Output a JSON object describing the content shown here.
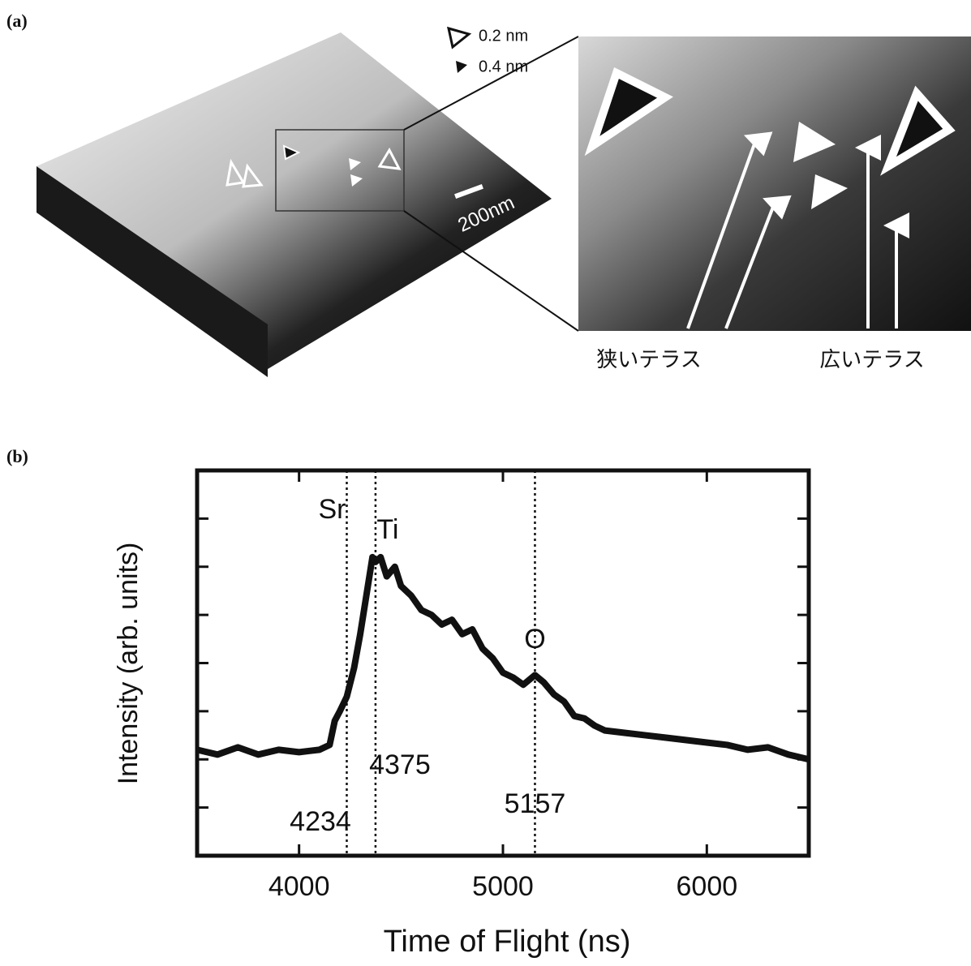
{
  "panel_a": {
    "label": "(a)",
    "legend": [
      "0.2 nm",
      "0.4 nm"
    ],
    "scale_bar": "200nm",
    "annotations": [
      "狭いテラス",
      "広いテラス"
    ]
  },
  "chart_data": {
    "type": "line",
    "panel_label": "(b)",
    "x_label": "Time of Flight (ns)",
    "y_label": "Intensity (arb. units)",
    "xlim": [
      3500,
      6500
    ],
    "ylim": [
      0,
      8
    ],
    "xticks": [
      4000,
      5000,
      6000
    ],
    "yticks": [
      1,
      2,
      3,
      4,
      5,
      6,
      7
    ],
    "peaks": [
      {
        "element": "Sr",
        "x": 4234
      },
      {
        "element": "Ti",
        "x": 4375
      },
      {
        "element": "O",
        "x": 5157
      }
    ],
    "series": [
      {
        "color": "#111111",
        "x": [
          3500,
          3600,
          3700,
          3800,
          3900,
          4000,
          4100,
          4150,
          4175,
          4200,
          4234,
          4270,
          4300,
          4330,
          4360,
          4375,
          4400,
          4430,
          4470,
          4500,
          4550,
          4600,
          4650,
          4700,
          4750,
          4800,
          4850,
          4900,
          4950,
          5000,
          5050,
          5100,
          5157,
          5200,
          5250,
          5300,
          5350,
          5400,
          5450,
          5500,
          5600,
          5700,
          5800,
          5900,
          6000,
          6100,
          6200,
          6300,
          6400,
          6500
        ],
        "values": [
          2.2,
          2.1,
          2.25,
          2.1,
          2.2,
          2.15,
          2.2,
          2.3,
          2.8,
          3.0,
          3.3,
          3.9,
          4.6,
          5.4,
          6.2,
          6.1,
          6.2,
          5.8,
          6.0,
          5.6,
          5.4,
          5.1,
          5.0,
          4.8,
          4.9,
          4.6,
          4.7,
          4.3,
          4.1,
          3.8,
          3.7,
          3.55,
          3.75,
          3.6,
          3.35,
          3.2,
          2.9,
          2.85,
          2.7,
          2.6,
          2.55,
          2.5,
          2.45,
          2.4,
          2.35,
          2.3,
          2.2,
          2.25,
          2.1,
          2.0
        ]
      }
    ]
  }
}
